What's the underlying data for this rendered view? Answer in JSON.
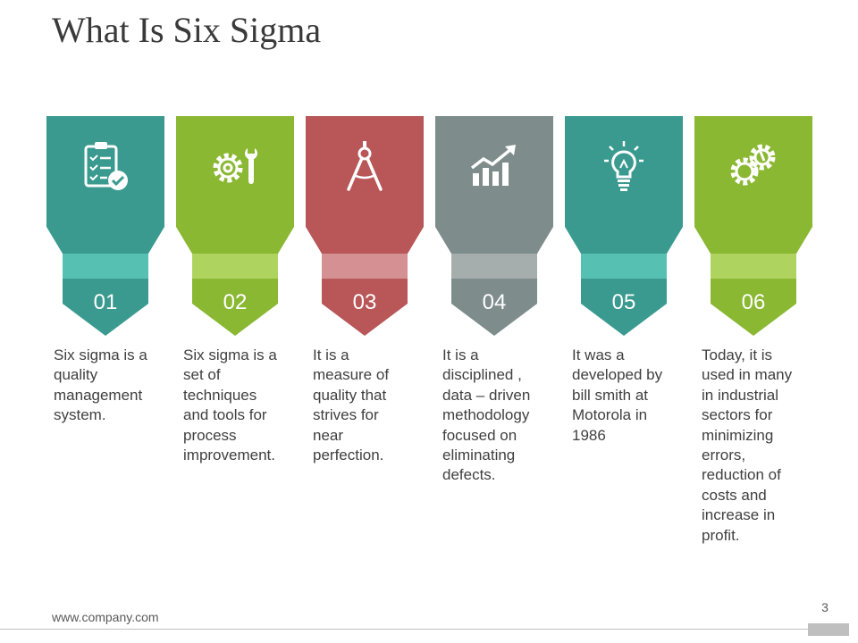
{
  "slide": {
    "title": "What Is Six Sigma",
    "footer_url": "www.company.com",
    "page_number": "3"
  },
  "columns": [
    {
      "number": "01",
      "text": "Six sigma is a\nquality\nmanagement\nsystem.",
      "icon": "checklist-icon",
      "color": "#3a9a8f",
      "band": "#56c0b3"
    },
    {
      "number": "02",
      "text": "Six sigma is a\nset of\ntechniques\nand tools for\nprocess\nimprovement.",
      "icon": "gear-wrench-icon",
      "color": "#8ab833",
      "band": "#aed45f"
    },
    {
      "number": "03",
      "text": "It is a\nmeasure  of\nquality that\nstrives for\nnear\nperfection.",
      "icon": "compass-icon",
      "color": "#b85658",
      "band": "#d49092"
    },
    {
      "number": "04",
      "text": "It is a\ndisciplined ,\ndata – driven\nmethodology\nfocused on\neliminating\ndefects.",
      "icon": "growth-chart-icon",
      "color": "#7f8c8c",
      "band": "#a6adad"
    },
    {
      "number": "05",
      "text": "It was a\ndeveloped by\nbill smith at\nMotorola in\n1986",
      "icon": "lightbulb-icon",
      "color": "#3a9a8f",
      "band": "#56c0b3"
    },
    {
      "number": "06",
      "text": "Today, it is\nused in many\nin industrial\nsectors for\nminimizing\nerrors,\nreduction of\ncosts and\nincrease in\nprofit.",
      "icon": "gears-icon",
      "color": "#8ab833",
      "band": "#aed45f"
    }
  ]
}
